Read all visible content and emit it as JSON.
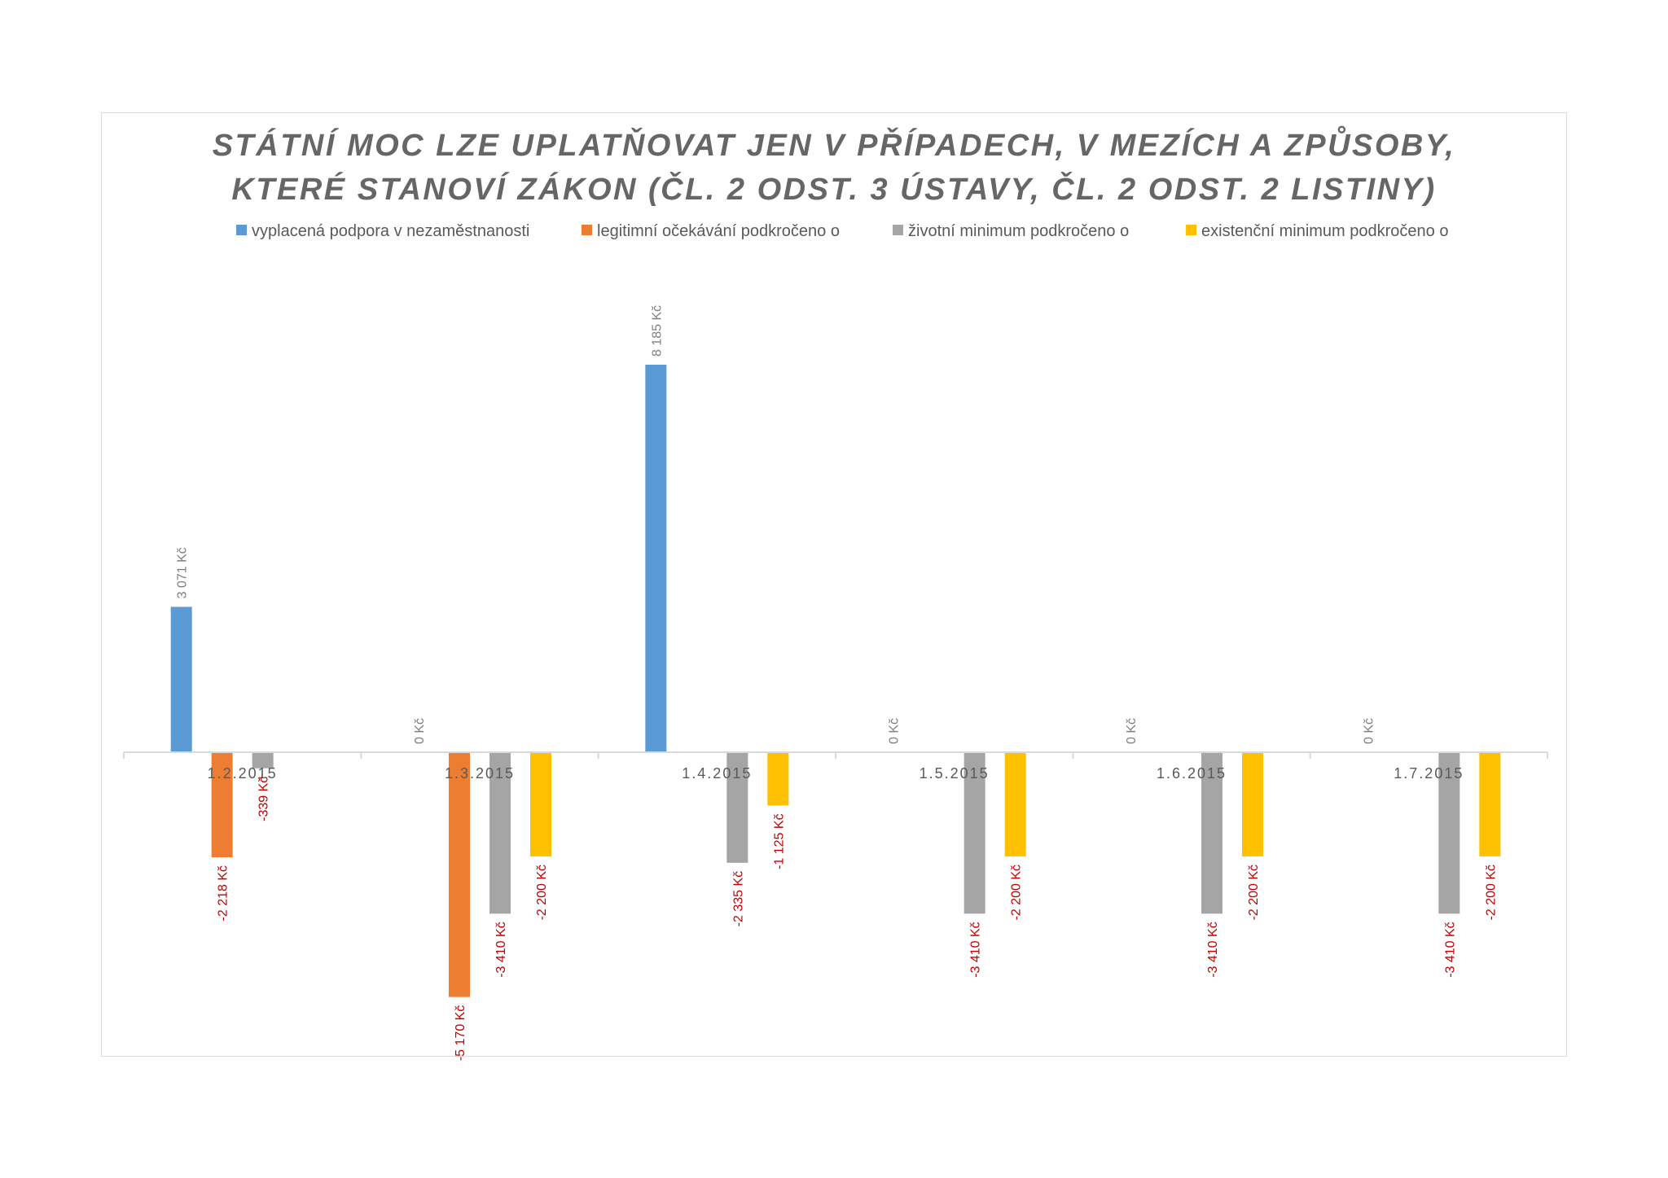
{
  "chart_data": {
    "type": "bar",
    "title_lines": [
      "STÁTNÍ MOC LZE UPLATŇOVAT JEN V PŘÍPADECH, V MEZÍCH A ZPŮSOBY,",
      "KTERÉ STANOVÍ ZÁKON (ČL. 2 ODST. 3 ÚSTAVY, ČL. 2 ODST. 2 LISTINY)"
    ],
    "categories": [
      "1.2.2015",
      "1.3.2015",
      "1.4.2015",
      "1.5.2015",
      "1.6.2015",
      "1.7.2015"
    ],
    "legend_position": "top",
    "grid": false,
    "ylim": [
      -6300,
      9800
    ],
    "series": [
      {
        "name": "vyplacená podpora v nezaměstnanosti",
        "color": "#5B9BD5",
        "values": [
          3071,
          0,
          8185,
          0,
          0,
          0
        ],
        "labels": [
          "3 071 Kč",
          "0 Kč",
          "8 185 Kč",
          "0 Kč",
          "0 Kč",
          "0 Kč"
        ],
        "label_color": "#7F7F7F"
      },
      {
        "name": "legitimní očekávání podkročeno o",
        "color": "#ED7D31",
        "values": [
          -2218,
          -5170,
          null,
          null,
          null,
          null
        ],
        "labels": [
          "-2 218 Kč",
          "-5 170 Kč",
          null,
          null,
          null,
          null
        ],
        "label_color": "#C00000"
      },
      {
        "name": "životní minimum podkročeno o",
        "color": "#A5A5A5",
        "values": [
          -339,
          -3410,
          -2335,
          -3410,
          -3410,
          -3410
        ],
        "labels": [
          "-339 Kč",
          "-3 410 Kč",
          "-2 335 Kč",
          "-3 410 Kč",
          "-3 410 Kč",
          "-3 410 Kč"
        ],
        "label_color": "#C00000"
      },
      {
        "name": "existenční minimum podkročeno o",
        "color": "#FFC000",
        "values": [
          null,
          -2200,
          -1125,
          -2200,
          -2200,
          -2200
        ],
        "labels": [
          null,
          "-2 200 Kč",
          "-1 125 Kč",
          "-2 200 Kč",
          "-2 200 Kč",
          "-2 200 Kč"
        ],
        "label_color": "#C00000"
      }
    ]
  }
}
